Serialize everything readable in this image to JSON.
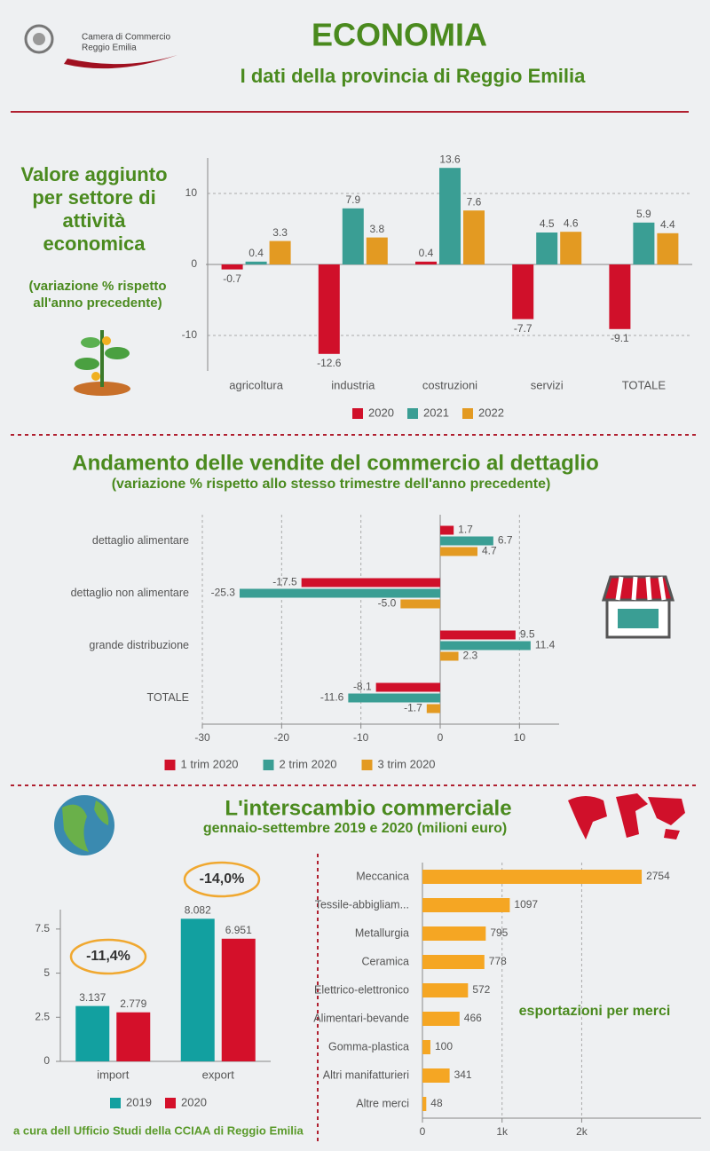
{
  "header": {
    "logo": [
      "Camera di Commercio",
      "Reggio Emilia"
    ],
    "title": "ECONOMIA",
    "subtitle": "I dati della provincia di Reggio Emilia"
  },
  "chart_data": [
    {
      "type": "bar",
      "title": [
        "Valore aggiunto",
        "per settore di",
        "attività",
        "economica"
      ],
      "subtitle": [
        "(variazione % rispetto",
        "all'anno precedente)"
      ],
      "categories": [
        "agricoltura",
        "industria",
        "costruzioni",
        "servizi",
        "TOTALE"
      ],
      "series": [
        {
          "name": "2020",
          "color": "#d0102a",
          "values": [
            -0.7,
            -12.6,
            0.4,
            -7.7,
            -9.1
          ]
        },
        {
          "name": "2021",
          "color": "#3a9e94",
          "values": [
            0.4,
            7.9,
            13.6,
            4.5,
            5.9
          ]
        },
        {
          "name": "2022",
          "color": "#e39a22",
          "values": [
            3.3,
            3.8,
            7.6,
            4.6,
            4.4
          ]
        }
      ],
      "ylim": [
        -15,
        15
      ],
      "yticks": [
        -10,
        0,
        10
      ],
      "grid": true
    },
    {
      "type": "barh",
      "title": "Andamento delle vendite del commercio al dettaglio",
      "subtitle": "(variazione % rispetto allo stesso trimestre dell'anno precedente)",
      "categories": [
        "dettaglio alimentare",
        "dettaglio non alimentare",
        "grande distribuzione",
        "TOTALE"
      ],
      "series": [
        {
          "name": "1 trim 2020",
          "color": "#d0102a",
          "values": [
            1.7,
            -17.5,
            9.5,
            -8.1
          ]
        },
        {
          "name": "2 trim 2020",
          "color": "#3a9e94",
          "values": [
            6.7,
            -25.3,
            11.4,
            -11.6
          ]
        },
        {
          "name": "3 trim 2020",
          "color": "#e39a22",
          "values": [
            4.7,
            -5,
            2.3,
            -1.7
          ],
          "value_labels": [
            "4.7",
            "-5.0",
            "2.3",
            "-1.7"
          ]
        }
      ],
      "xlim": [
        -30,
        15
      ],
      "xticks": [
        -30,
        -20,
        -10,
        0,
        10
      ],
      "grid": true
    },
    {
      "type": "bar",
      "title": "L'interscambio commerciale",
      "subtitle": "gennaio-settembre 2019 e 2020 (milioni euro)",
      "categories": [
        "import",
        "export"
      ],
      "series": [
        {
          "name": "2019",
          "color": "#12a0a0",
          "values": [
            3.137,
            8.082
          ]
        },
        {
          "name": "2020",
          "color": "#d4102a",
          "values": [
            2.779,
            6.951
          ]
        }
      ],
      "annotations": [
        "-11,4%",
        "-14,0%"
      ],
      "ylim": [
        0,
        8.6
      ],
      "yticks": [
        0,
        2.5,
        5,
        7.5
      ],
      "grid": false
    },
    {
      "type": "barh",
      "title": "esportazioni per merci",
      "categories": [
        "Meccanica",
        "Tessile-abbigliam...",
        "Metallurgia",
        "Ceramica",
        "Elettrico-elettronico",
        "Alimentari-bevande",
        "Gomma-plastica",
        "Altri manifatturieri",
        "Altre merci"
      ],
      "values": [
        2754,
        1097,
        795,
        778,
        572,
        466,
        100,
        341,
        48
      ],
      "color": "#f5a623",
      "xlim": [
        0,
        3500
      ],
      "xticks": [
        0,
        {
          "value": 1000,
          "label": "1k"
        },
        {
          "value": 2000,
          "label": "2k"
        }
      ],
      "grid": true
    }
  ],
  "footer": "a cura dell Ufficio Studi della CCIAA di Reggio Emilia"
}
